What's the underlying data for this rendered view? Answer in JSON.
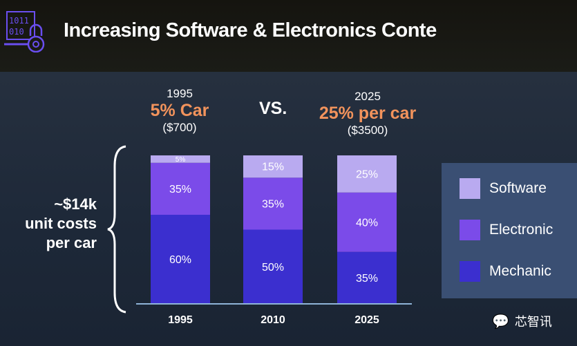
{
  "header": {
    "title": "Increasing Software & Electronics Conte"
  },
  "comparison": {
    "left": {
      "year": "1995",
      "headline": "5% Car",
      "amount": "($700)"
    },
    "vs": "VS.",
    "right": {
      "year": "2025",
      "headline": "25% per car",
      "amount": "($3500)"
    }
  },
  "cost_note": [
    "~$14k",
    "unit costs",
    "per car"
  ],
  "watermark": "芯智讯",
  "chart_data": {
    "type": "bar",
    "stacked": true,
    "categories": [
      "1995",
      "2010",
      "2025"
    ],
    "series": [
      {
        "name": "Mechanic",
        "color": "#3b2fcf",
        "values": [
          60,
          50,
          35
        ],
        "labels": [
          "60%",
          "50%",
          "35%"
        ]
      },
      {
        "name": "Electronic",
        "color": "#7b4be9",
        "values": [
          35,
          35,
          40
        ],
        "labels": [
          "35%",
          "35%",
          "40%"
        ]
      },
      {
        "name": "Software",
        "color": "#b9aaf0",
        "values": [
          5,
          15,
          25
        ],
        "labels": [
          "5%",
          "15%",
          "25%"
        ]
      }
    ],
    "ylim": [
      0,
      100
    ],
    "legend": [
      "Software",
      "Electronic",
      "Mechanic"
    ],
    "legend_placement": "right"
  }
}
